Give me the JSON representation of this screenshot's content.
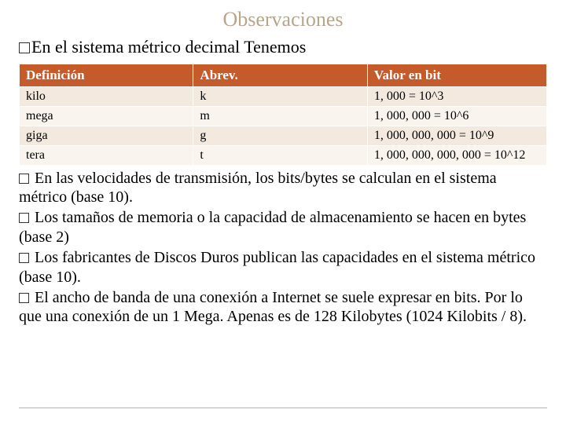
{
  "colors": {
    "title": "#b8a58e",
    "header_bg": "#c55a2b",
    "header_fg": "#ffffff",
    "row_odd": "#f3e9de",
    "row_even": "#f9f4ee",
    "rule": "#b9b3a8",
    "text": "#000000",
    "page_bg": "#ffffff"
  },
  "title": "Observaciones",
  "heading": "En el sistema métrico decimal  Tenemos",
  "table": {
    "columns": [
      "Definición",
      "Abrev.",
      "Valor  en bit"
    ],
    "rows": [
      [
        "kilo",
        "k",
        "1, 000 = 10^3"
      ],
      [
        "mega",
        "m",
        "1, 000, 000 = 10^6"
      ],
      [
        "giga",
        "g",
        "1, 000, 000, 000 = 10^9"
      ],
      [
        "tera",
        "t",
        "1, 000, 000, 000, 000 = 10^12"
      ]
    ]
  },
  "bullets": [
    "En las velocidades de transmisión, los bits/bytes se calculan en el sistema métrico (base 10).",
    "Los tamaños de memoria o la capacidad de almacenamiento se hacen en bytes (base 2)",
    "Los fabricantes de Discos Duros publican las capacidades en el sistema métrico (base 10).",
    "El ancho de banda de una conexión a Internet se suele expresar en bits. Por lo que una conexión de un 1 Mega. Apenas es de 128 Kilobytes (1024 Kilobits / 8)."
  ]
}
